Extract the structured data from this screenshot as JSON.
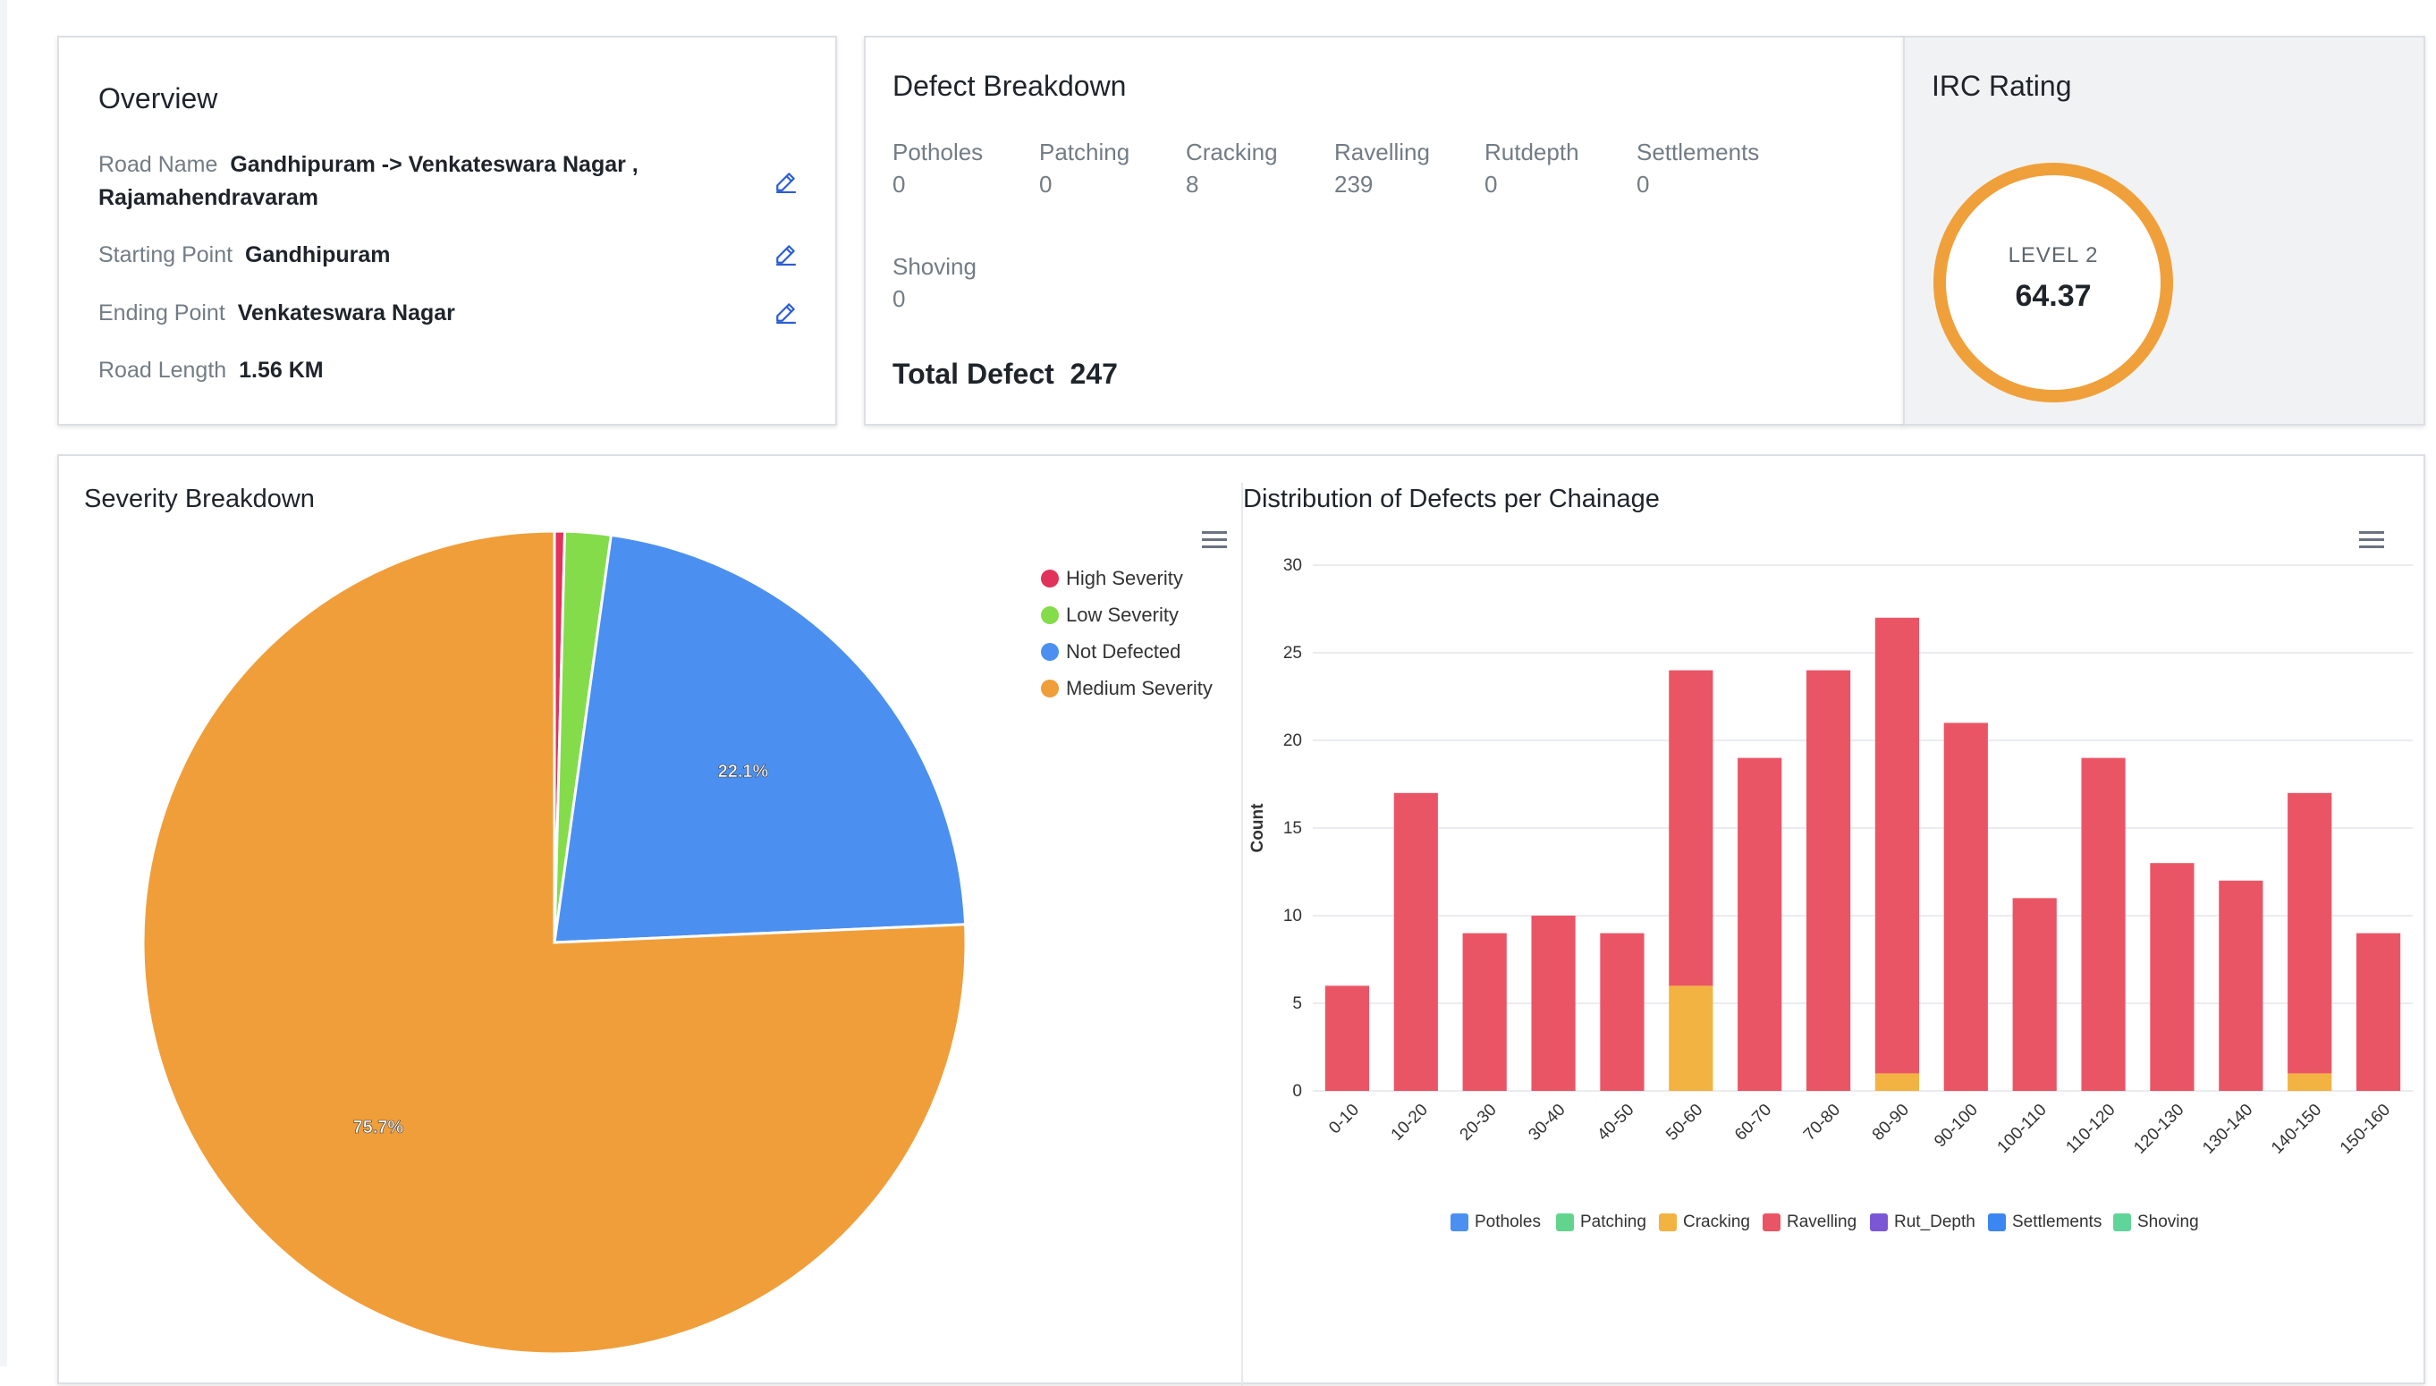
{
  "overview": {
    "title": "Overview",
    "road_name_label": "Road Name",
    "road_name_line1": "Gandhipuram -> Venkateswara Nagar ,",
    "road_name_line2": "Rajamahendravaram",
    "start_label": "Starting Point",
    "start_value": "Gandhipuram",
    "end_label": "Ending Point",
    "end_value": "Venkateswara Nagar",
    "length_label": "Road Length",
    "length_value": "1.56 KM"
  },
  "defect_breakdown": {
    "title": "Defect Breakdown",
    "items": [
      {
        "label": "Potholes",
        "value": "0"
      },
      {
        "label": "Patching",
        "value": "0"
      },
      {
        "label": "Cracking",
        "value": "8"
      },
      {
        "label": "Ravelling",
        "value": "239"
      },
      {
        "label": "Rutdepth",
        "value": "0"
      },
      {
        "label": "Settlements",
        "value": "0"
      },
      {
        "label": "Shoving",
        "value": "0"
      }
    ],
    "total_label": "Total Defect",
    "total_value": "247"
  },
  "irc": {
    "title": "IRC Rating",
    "level": "LEVEL 2",
    "score": "64.37",
    "ring_color": "#f0a03a"
  },
  "severity": {
    "title": "Severity Breakdown",
    "legend": [
      {
        "label": "High Severity",
        "color": "#e0325a"
      },
      {
        "label": "Low Severity",
        "color": "#84dc4a"
      },
      {
        "label": "Not Defected",
        "color": "#4b90f0"
      },
      {
        "label": "Medium Severity",
        "color": "#f09e3a"
      }
    ]
  },
  "distribution": {
    "title": "Distribution of Defects per Chainage",
    "legend": [
      {
        "label": "Potholes",
        "color": "#4b90f0"
      },
      {
        "label": "Patching",
        "color": "#63d48e"
      },
      {
        "label": "Cracking",
        "color": "#f3b342"
      },
      {
        "label": "Ravelling",
        "color": "#ea5566"
      },
      {
        "label": "Rut_Depth",
        "color": "#7b57d6"
      },
      {
        "label": "Settlements",
        "color": "#3b86f0"
      },
      {
        "label": "Shoving",
        "color": "#5fd59a"
      }
    ]
  },
  "chart_data": [
    {
      "type": "pie",
      "title": "Severity Breakdown",
      "slices": [
        {
          "label": "High Severity",
          "value": 0.4,
          "color": "#e0325a"
        },
        {
          "label": "Low Severity",
          "value": 1.8,
          "color": "#84dc4a"
        },
        {
          "label": "Not Defected",
          "value": 22.1,
          "color": "#4b90f0",
          "data_label": "22.1%"
        },
        {
          "label": "Medium Severity",
          "value": 75.7,
          "color": "#f09e3a",
          "data_label": "75.7%"
        }
      ]
    },
    {
      "type": "bar",
      "stacked": true,
      "title": "Distribution of Defects per Chainage",
      "ylabel": "Count",
      "ylim": [
        0,
        30
      ],
      "yticks": [
        0,
        5,
        10,
        15,
        20,
        25,
        30
      ],
      "categories": [
        "0-10",
        "10-20",
        "20-30",
        "30-40",
        "40-50",
        "50-60",
        "60-70",
        "70-80",
        "80-90",
        "90-100",
        "100-110",
        "110-120",
        "120-130",
        "130-140",
        "140-150",
        "150-160"
      ],
      "series": [
        {
          "name": "Cracking",
          "color": "#f3b342",
          "values": [
            0,
            0,
            0,
            0,
            0,
            6,
            0,
            0,
            1,
            0,
            0,
            0,
            0,
            0,
            1,
            0
          ]
        },
        {
          "name": "Ravelling",
          "color": "#ea5566",
          "values": [
            6,
            17,
            9,
            10,
            9,
            18,
            19,
            24,
            26,
            21,
            11,
            19,
            13,
            12,
            16,
            9
          ]
        }
      ]
    }
  ]
}
